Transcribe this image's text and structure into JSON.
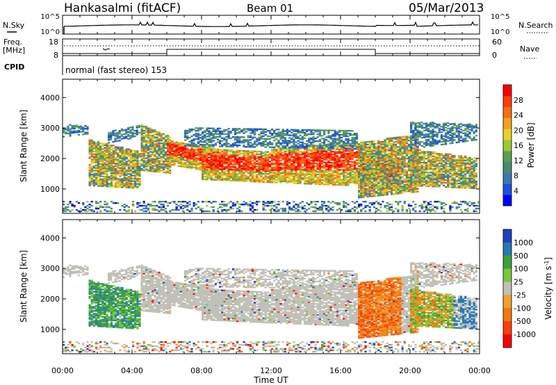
{
  "header": {
    "station": "Hankasalmi (fitACF)",
    "beam": "Beam 01",
    "date": "05/Mar/2013"
  },
  "noise_panel": {
    "left_label": "N.Sky",
    "right_label": "N.Search",
    "left_ticks": [
      "10^5",
      "10^0"
    ],
    "right_ticks": [
      "10^5",
      "10^0"
    ]
  },
  "freq_panel": {
    "label_line1": "Freq.",
    "label_line2": "[MHz]",
    "left_ticks": [
      "18",
      "8"
    ],
    "right_ticks": [
      "60",
      "0"
    ],
    "right_label": "Nave"
  },
  "cpid": {
    "label": "CPID",
    "program": "normal (fast stereo) 153"
  },
  "chart_data": [
    {
      "type": "heatmap",
      "name": "power",
      "ylabel": "Slant Range [km]",
      "ylim": [
        200,
        4600
      ],
      "y_ticks": [
        "1000",
        "2000",
        "3000",
        "4000"
      ],
      "xlim_hours": [
        0,
        24
      ],
      "colorbar": {
        "label": "Power [dB]",
        "range": [
          0,
          32
        ],
        "tick_labels": [
          "4",
          "8",
          "12",
          "16",
          "20",
          "24",
          "28"
        ],
        "colors": [
          "#0000ff",
          "#1e50dc",
          "#3c78b4",
          "#4a8a6e",
          "#5aa050",
          "#9ec832",
          "#e6d228",
          "#f5a01e",
          "#f56e14",
          "#ff3c0a",
          "#ff0000"
        ]
      }
    },
    {
      "type": "heatmap",
      "name": "velocity",
      "ylabel": "Slant Range [km]",
      "ylim": [
        200,
        4600
      ],
      "y_ticks": [
        "1000",
        "2000",
        "3000",
        "4000"
      ],
      "xlim_hours": [
        0,
        24
      ],
      "colorbar": {
        "label": "Velocity [m s",
        "label_superscript": "-1",
        "label_close": "]",
        "tick_labels": [
          "1000",
          "500",
          "100",
          "25",
          "-25",
          "-100",
          "-500",
          "-1000"
        ],
        "colors": [
          "#2040c0",
          "#2878b4",
          "#3ca03c",
          "#78c83c",
          "#c0c0b8",
          "#f0a028",
          "#f07814",
          "#ff3c0a",
          "#ff0000"
        ]
      }
    }
  ],
  "x_axis": {
    "label": "Time UT",
    "tick_labels": [
      "00:00",
      "04:00",
      "08:00",
      "12:00",
      "16:00",
      "20:00",
      "00:00"
    ]
  }
}
